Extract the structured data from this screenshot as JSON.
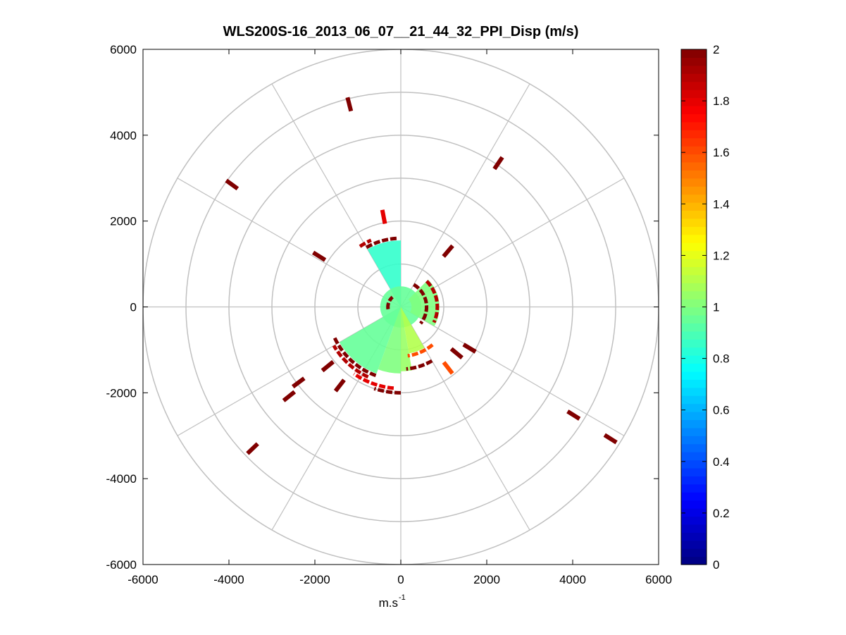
{
  "chart_data": {
    "type": "polar-ppi-scatter",
    "title": "WLS200S-16_2013_06_07__21_44_32_PPI_Disp (m/s)",
    "xlabel": "m.s",
    "xlabel_superscript": "-1",
    "ylabel": "",
    "xlim": [
      -6000,
      6000
    ],
    "ylim": [
      -6000,
      6000
    ],
    "xticks": [
      -6000,
      -4000,
      -2000,
      0,
      2000,
      4000,
      6000
    ],
    "yticks": [
      6000,
      4000,
      2000,
      0,
      -2000,
      -4000,
      -6000
    ],
    "x_tick_labels": [
      "-6000",
      "-4000",
      "-2000",
      "0",
      "2000",
      "4000",
      "6000"
    ],
    "y_tick_labels": [
      "6000",
      "4000",
      "2000",
      "0",
      "-2000",
      "-4000",
      "-6000"
    ],
    "polar_grid": {
      "ring_radii": [
        1000,
        2000,
        3000,
        4000,
        5000,
        6000
      ],
      "spoke_angles_deg": [
        0,
        30,
        60,
        90,
        120,
        150,
        180,
        210,
        240,
        270,
        300,
        330
      ]
    },
    "colorbar": {
      "colormap": "jet",
      "range": [
        0,
        2
      ],
      "ticks": [
        0,
        0.2,
        0.4,
        0.6,
        0.8,
        1,
        1.2,
        1.4,
        1.6,
        1.8,
        2
      ],
      "tick_labels": [
        "0",
        "0.2",
        "0.4",
        "0.6",
        "0.8",
        "1",
        "1.2",
        "1.4",
        "1.6",
        "1.8",
        "2"
      ]
    },
    "sectors": [
      {
        "az_start_deg": 330,
        "az_end_deg": 360,
        "r_min": 0,
        "r_max": 1550,
        "value": 0.85
      },
      {
        "az_start_deg": 0,
        "az_end_deg": 360,
        "r_min": 0,
        "r_max": 480,
        "value": 0.95
      },
      {
        "az_start_deg": 200,
        "az_end_deg": 240,
        "r_min": 0,
        "r_max": 1650,
        "value": 0.95
      },
      {
        "az_start_deg": 180,
        "az_end_deg": 200,
        "r_min": 0,
        "r_max": 1550,
        "value": 1.0
      },
      {
        "az_start_deg": 170,
        "az_end_deg": 180,
        "r_min": 0,
        "r_max": 1500,
        "value": 1.05
      },
      {
        "az_start_deg": 150,
        "az_end_deg": 170,
        "r_min": 0,
        "r_max": 1100,
        "value": 1.1
      },
      {
        "az_start_deg": 45,
        "az_end_deg": 120,
        "r_min": 250,
        "r_max": 900,
        "value": 1.0
      }
    ],
    "arcs": [
      {
        "az_start_deg": 200,
        "az_end_deg": 245,
        "r": 1700,
        "value": 2.0
      },
      {
        "az_start_deg": 205,
        "az_end_deg": 240,
        "r": 1800,
        "value": 1.9
      },
      {
        "az_start_deg": 185,
        "az_end_deg": 215,
        "r": 1900,
        "value": 1.8
      },
      {
        "az_start_deg": 180,
        "az_end_deg": 198,
        "r": 2000,
        "value": 2.0
      },
      {
        "az_start_deg": 330,
        "az_end_deg": 358,
        "r": 1600,
        "value": 2.0
      },
      {
        "az_start_deg": 326,
        "az_end_deg": 336,
        "r": 1700,
        "value": 1.9
      },
      {
        "az_start_deg": 140,
        "az_end_deg": 172,
        "r": 1150,
        "value": 1.6
      },
      {
        "az_start_deg": 150,
        "az_end_deg": 175,
        "r": 1450,
        "value": 2.0
      },
      {
        "az_start_deg": 30,
        "az_end_deg": 130,
        "r": 600,
        "value": 2.0
      },
      {
        "az_start_deg": 45,
        "az_end_deg": 115,
        "r": 850,
        "value": 1.9
      },
      {
        "az_start_deg": 260,
        "az_end_deg": 320,
        "r": 300,
        "value": 2.0
      }
    ],
    "points": [
      {
        "x": -1200,
        "y": 4720,
        "value": 2.0
      },
      {
        "x": -3930,
        "y": 2850,
        "value": 2.0
      },
      {
        "x": 2270,
        "y": 3350,
        "value": 2.0
      },
      {
        "x": -1900,
        "y": 1180,
        "value": 2.0
      },
      {
        "x": -2380,
        "y": -1760,
        "value": 2.0
      },
      {
        "x": -2600,
        "y": -2080,
        "value": 2.0
      },
      {
        "x": -3450,
        "y": -3300,
        "value": 2.0
      },
      {
        "x": 4020,
        "y": -2520,
        "value": 2.0
      },
      {
        "x": 4880,
        "y": -3070,
        "value": 2.0
      },
      {
        "x": -1420,
        "y": -1830,
        "value": 2.0
      },
      {
        "x": -1700,
        "y": -1380,
        "value": 2.0
      },
      {
        "x": -400,
        "y": 2100,
        "value": 1.8
      },
      {
        "x": 1100,
        "y": 1300,
        "value": 2.0
      },
      {
        "x": 1300,
        "y": -1080,
        "value": 2.0
      },
      {
        "x": 1100,
        "y": -1420,
        "value": 1.6
      },
      {
        "x": 1600,
        "y": -960,
        "value": 2.0
      }
    ]
  }
}
